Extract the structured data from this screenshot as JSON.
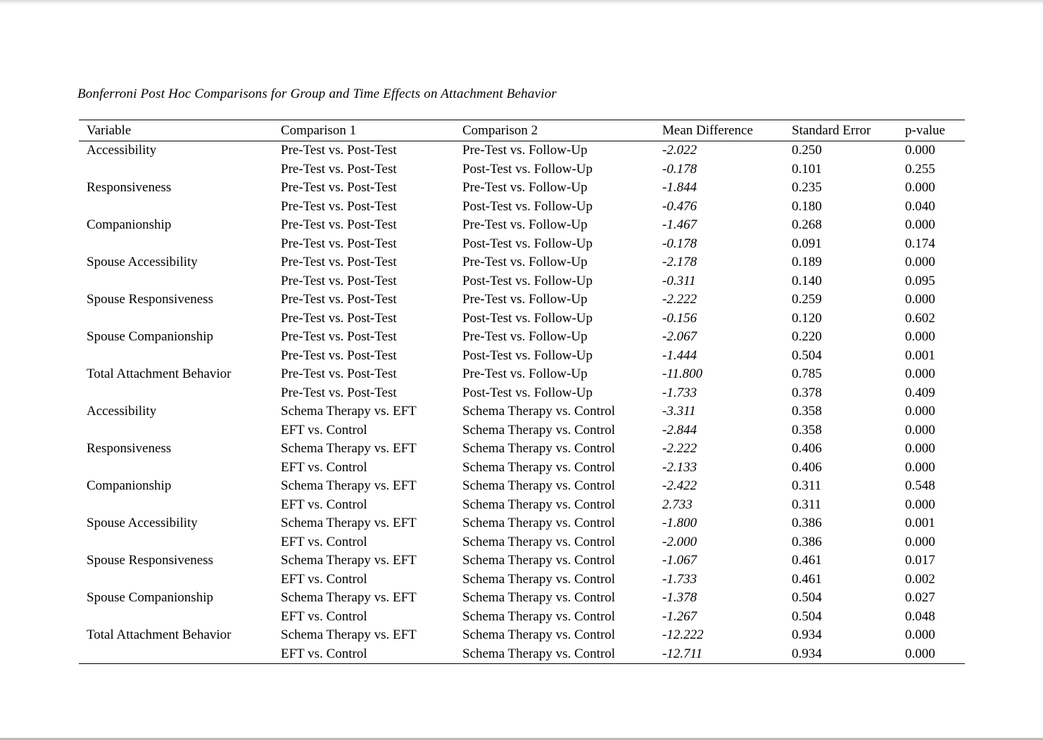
{
  "page": {
    "title": "Bonferroni Post Hoc Comparisons for Group and Time Effects on Attachment Behavior"
  },
  "colors": {
    "text": "#000000",
    "rule": "#000000",
    "top_edge": "#d7d7d7",
    "bottom_edge": "#b9b9b9",
    "background": "#ffffff"
  },
  "table": {
    "columns": [
      "Variable",
      "Comparison 1",
      "Comparison 2",
      "Mean Difference",
      "Standard Error",
      "p-value"
    ],
    "rows": [
      [
        "Accessibility",
        "Pre-Test vs. Post-Test",
        "Pre-Test vs. Follow-Up",
        "-2.022",
        "0.250",
        "0.000"
      ],
      [
        "",
        "Pre-Test vs. Post-Test",
        "Post-Test vs. Follow-Up",
        "-0.178",
        "0.101",
        "0.255"
      ],
      [
        "Responsiveness",
        "Pre-Test vs. Post-Test",
        "Pre-Test vs. Follow-Up",
        "-1.844",
        "0.235",
        "0.000"
      ],
      [
        "",
        "Pre-Test vs. Post-Test",
        "Post-Test vs. Follow-Up",
        "-0.476",
        "0.180",
        "0.040"
      ],
      [
        "Companionship",
        "Pre-Test vs. Post-Test",
        "Pre-Test vs. Follow-Up",
        "-1.467",
        "0.268",
        "0.000"
      ],
      [
        "",
        "Pre-Test vs. Post-Test",
        "Post-Test vs. Follow-Up",
        "-0.178",
        "0.091",
        "0.174"
      ],
      [
        "Spouse Accessibility",
        "Pre-Test vs. Post-Test",
        "Pre-Test vs. Follow-Up",
        "-2.178",
        "0.189",
        "0.000"
      ],
      [
        "",
        "Pre-Test vs. Post-Test",
        "Post-Test vs. Follow-Up",
        "-0.311",
        "0.140",
        "0.095"
      ],
      [
        "Spouse Responsiveness",
        "Pre-Test vs. Post-Test",
        "Pre-Test vs. Follow-Up",
        "-2.222",
        "0.259",
        "0.000"
      ],
      [
        "",
        "Pre-Test vs. Post-Test",
        "Post-Test vs. Follow-Up",
        "-0.156",
        "0.120",
        "0.602"
      ],
      [
        "Spouse Companionship",
        "Pre-Test vs. Post-Test",
        "Pre-Test vs. Follow-Up",
        "-2.067",
        "0.220",
        "0.000"
      ],
      [
        "",
        "Pre-Test vs. Post-Test",
        "Post-Test vs. Follow-Up",
        "-1.444",
        "0.504",
        "0.001"
      ],
      [
        "Total Attachment Behavior",
        "Pre-Test vs. Post-Test",
        "Pre-Test vs. Follow-Up",
        "-11.800",
        "0.785",
        "0.000"
      ],
      [
        "",
        "Pre-Test vs. Post-Test",
        "Post-Test vs. Follow-Up",
        "-1.733",
        "0.378",
        "0.409"
      ],
      [
        "Accessibility",
        "Schema Therapy vs. EFT",
        "Schema Therapy vs. Control",
        "-3.311",
        "0.358",
        "0.000"
      ],
      [
        "",
        "EFT vs. Control",
        "Schema Therapy vs. Control",
        "-2.844",
        "0.358",
        "0.000"
      ],
      [
        "Responsiveness",
        "Schema Therapy vs. EFT",
        "Schema Therapy vs. Control",
        "-2.222",
        "0.406",
        "0.000"
      ],
      [
        "",
        "EFT vs. Control",
        "Schema Therapy vs. Control",
        "-2.133",
        "0.406",
        "0.000"
      ],
      [
        "Companionship",
        "Schema Therapy vs. EFT",
        "Schema Therapy vs. Control",
        "-2.422",
        "0.311",
        "0.548"
      ],
      [
        "",
        "EFT vs. Control",
        "Schema Therapy vs. Control",
        "2.733",
        "0.311",
        "0.000"
      ],
      [
        "Spouse Accessibility",
        "Schema Therapy vs. EFT",
        "Schema Therapy vs. Control",
        "-1.800",
        "0.386",
        "0.001"
      ],
      [
        "",
        "EFT vs. Control",
        "Schema Therapy vs. Control",
        "-2.000",
        "0.386",
        "0.000"
      ],
      [
        "Spouse Responsiveness",
        "Schema Therapy vs. EFT",
        "Schema Therapy vs. Control",
        "-1.067",
        "0.461",
        "0.017"
      ],
      [
        "",
        "EFT vs. Control",
        "Schema Therapy vs. Control",
        "-1.733",
        "0.461",
        "0.002"
      ],
      [
        "Spouse Companionship",
        "Schema Therapy vs. EFT",
        "Schema Therapy vs. Control",
        "-1.378",
        "0.504",
        "0.027"
      ],
      [
        "",
        "EFT vs. Control",
        "Schema Therapy vs. Control",
        "-1.267",
        "0.504",
        "0.048"
      ],
      [
        "Total Attachment Behavior",
        "Schema Therapy vs. EFT",
        "Schema Therapy vs. Control",
        "-12.222",
        "0.934",
        "0.000"
      ],
      [
        "",
        "EFT vs. Control",
        "Schema Therapy vs. Control",
        "-12.711",
        "0.934",
        "0.000"
      ]
    ],
    "cell_keys": [
      "variable",
      "comparison-1",
      "comparison-2",
      "mean-difference",
      "standard-error",
      "p-value"
    ]
  }
}
